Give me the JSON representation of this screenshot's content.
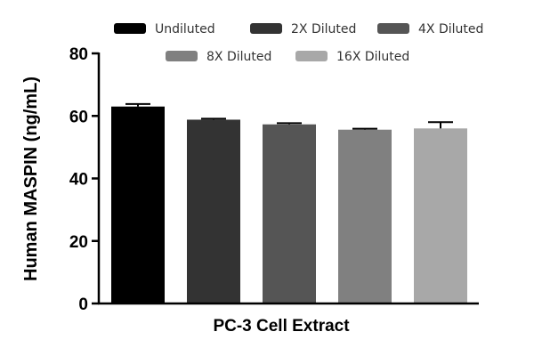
{
  "chart_data": {
    "type": "bar",
    "title": "",
    "xlabel": "PC-3 Cell Extract",
    "ylabel": "Human MASPIN (ng/mL)",
    "ylim": [
      0,
      80
    ],
    "yticks": [
      0,
      20,
      40,
      60,
      80
    ],
    "grid": false,
    "legend_position": "top",
    "series": [
      {
        "name": "Undiluted",
        "value": 63.0,
        "error": 0.8,
        "color": "#000000"
      },
      {
        "name": "2X Diluted",
        "value": 58.8,
        "error": 0.3,
        "color": "#333333"
      },
      {
        "name": "4X Diluted",
        "value": 57.3,
        "error": 0.4,
        "color": "#555555"
      },
      {
        "name": "8X Diluted",
        "value": 55.6,
        "error": 0.3,
        "color": "#808080"
      },
      {
        "name": "16X Diluted",
        "value": 56.0,
        "error": 2.0,
        "color": "#a8a8a8"
      }
    ]
  }
}
